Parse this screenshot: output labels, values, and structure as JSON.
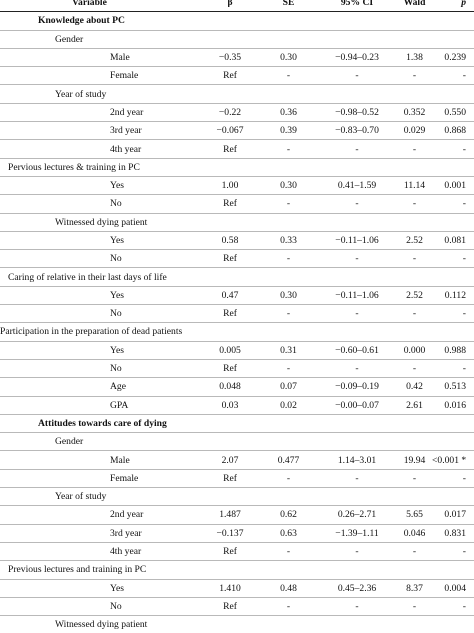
{
  "headers": [
    "Variable",
    "β",
    "SE",
    "95% CI",
    "Wald",
    "p"
  ],
  "rows": [
    {
      "kind": "section",
      "label": "Knowledge about PC"
    },
    {
      "kind": "group",
      "label": "Gender"
    },
    {
      "kind": "level",
      "label": "Male",
      "b": "−0.35",
      "se": "0.30",
      "ci": "−0.94–0.23",
      "wald": "1.38",
      "p": "0.239"
    },
    {
      "kind": "level",
      "label": "Female",
      "b": "Ref",
      "se": "-",
      "ci": "-",
      "wald": "-",
      "p": "-"
    },
    {
      "kind": "group",
      "label": "Year of study"
    },
    {
      "kind": "level",
      "label": "2nd year",
      "b": "−0.22",
      "se": "0.36",
      "ci": "−0.98–0.52",
      "wald": "0.352",
      "p": "0.550"
    },
    {
      "kind": "level",
      "label": "3rd year",
      "b": "−0.067",
      "se": "0.39",
      "ci": "−0.83–0.70",
      "wald": "0.029",
      "p": "0.868"
    },
    {
      "kind": "level",
      "label": "4th year",
      "b": "Ref",
      "se": "-",
      "ci": "-",
      "wald": "-",
      "p": "-"
    },
    {
      "kind": "wide",
      "label": "Pervious lectures & training in PC"
    },
    {
      "kind": "level",
      "label": "Yes",
      "b": "1.00",
      "se": "0.30",
      "ci": "0.41–1.59",
      "wald": "11.14",
      "p": "0.001"
    },
    {
      "kind": "level",
      "label": "No",
      "b": "Ref",
      "se": "-",
      "ci": "-",
      "wald": "-",
      "p": "-"
    },
    {
      "kind": "group",
      "label": "Witnessed dying patient"
    },
    {
      "kind": "level",
      "label": "Yes",
      "b": "0.58",
      "se": "0.33",
      "ci": "−0.11–1.06",
      "wald": "2.52",
      "p": "0.081"
    },
    {
      "kind": "level",
      "label": "No",
      "b": "Ref",
      "se": "-",
      "ci": "-",
      "wald": "-",
      "p": "-"
    },
    {
      "kind": "wide",
      "label": "Caring of relative in their last days of life"
    },
    {
      "kind": "level",
      "label": "Yes",
      "b": "0.47",
      "se": "0.30",
      "ci": "−0.11–1.06",
      "wald": "2.52",
      "p": "0.112"
    },
    {
      "kind": "level",
      "label": "No",
      "b": "Ref",
      "se": "-",
      "ci": "-",
      "wald": "-",
      "p": "-"
    },
    {
      "kind": "wide0",
      "label": "Participation in the preparation of dead patients"
    },
    {
      "kind": "level",
      "label": "Yes",
      "b": "0.005",
      "se": "0.31",
      "ci": "−0.60–0.61",
      "wald": "0.000",
      "p": "0.988"
    },
    {
      "kind": "level",
      "label": "No",
      "b": "Ref",
      "se": "-",
      "ci": "-",
      "wald": "-",
      "p": "-"
    },
    {
      "kind": "level",
      "label": "Age",
      "b": "0.048",
      "se": "0.07",
      "ci": "−0.09–0.19",
      "wald": "0.42",
      "p": "0.513"
    },
    {
      "kind": "level",
      "label": "GPA",
      "b": "0.03",
      "se": "0.02",
      "ci": "−0.00–0.07",
      "wald": "2.61",
      "p": "0.016"
    },
    {
      "kind": "section",
      "label": "Attitudes towards care of dying"
    },
    {
      "kind": "group",
      "label": "Gender"
    },
    {
      "kind": "level",
      "label": "Male",
      "b": "2.07",
      "se": "0.477",
      "ci": "1.14–3.01",
      "wald": "19.94",
      "p": "<0.001 *"
    },
    {
      "kind": "level",
      "label": "Female",
      "b": "Ref",
      "se": "-",
      "ci": "-",
      "wald": "-",
      "p": "-"
    },
    {
      "kind": "group",
      "label": "Year of study"
    },
    {
      "kind": "level",
      "label": "2nd year",
      "b": "1.487",
      "se": "0.62",
      "ci": "0.26–2.71",
      "wald": "5.65",
      "p": "0.017"
    },
    {
      "kind": "level",
      "label": "3rd year",
      "b": "−0.137",
      "se": "0.63",
      "ci": "−1.39–1.11",
      "wald": "0.046",
      "p": "0.831"
    },
    {
      "kind": "level",
      "label": "4th year",
      "b": "Ref",
      "se": "-",
      "ci": "-",
      "wald": "-",
      "p": "-"
    },
    {
      "kind": "wide",
      "label": "Previous lectures and training in PC"
    },
    {
      "kind": "level",
      "label": "Yes",
      "b": "1.410",
      "se": "0.48",
      "ci": "0.45–2.36",
      "wald": "8.37",
      "p": "0.004"
    },
    {
      "kind": "level",
      "label": "No",
      "b": "Ref",
      "se": "-",
      "ci": "-",
      "wald": "-",
      "p": "-"
    },
    {
      "kind": "group",
      "label": "Witnessed dying patient"
    }
  ]
}
